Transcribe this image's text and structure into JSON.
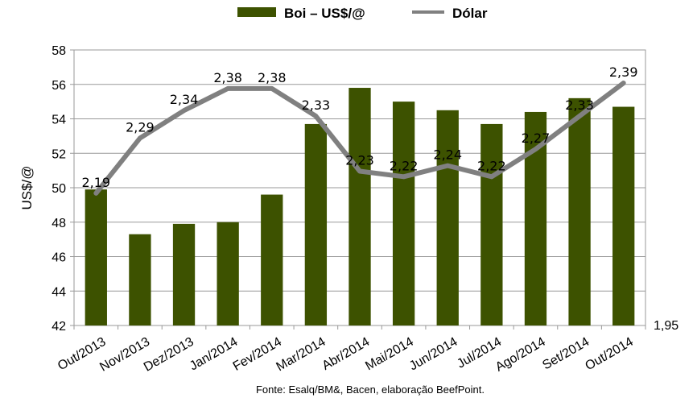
{
  "chart_data": {
    "type": "bar",
    "categories": [
      "Out/2013",
      "Nov/2013",
      "Dez/2013",
      "Jan/2014",
      "Fev/2014",
      "Mar/2014",
      "Abr/2014",
      "Mai/2014",
      "Jun/2014",
      "Jul/2014",
      "Ago/2014",
      "Set/2014",
      "Out/2014"
    ],
    "series": [
      {
        "name": "Boi – US$/@",
        "type": "bar",
        "color": "#3d5200",
        "values": [
          49.9,
          47.3,
          47.9,
          48.0,
          49.6,
          53.7,
          55.8,
          55.0,
          54.5,
          53.7,
          54.4,
          55.2,
          54.7
        ]
      },
      {
        "name": "Dólar",
        "type": "line",
        "color": "#808080",
        "values": [
          2.19,
          2.29,
          2.34,
          2.38,
          2.38,
          2.33,
          2.23,
          2.22,
          2.24,
          2.22,
          2.27,
          2.33,
          2.39
        ],
        "labels": [
          "2,19",
          "2,29",
          "2,34",
          "2,38",
          "2,38",
          "2,33",
          "2,23",
          "2,22",
          "2,24",
          "2,22",
          "2,27",
          "2,33",
          "2,39"
        ]
      }
    ],
    "ylabel": "US$/@",
    "ylim": [
      42,
      58
    ],
    "yticks": [
      "42",
      "44",
      "46",
      "48",
      "50",
      "52",
      "54",
      "56",
      "58"
    ],
    "y2_min": 1.95,
    "y2_min_label": "1,95",
    "y2_max": 2.45,
    "grid": true,
    "legend": "top-center",
    "source": "Fonte: Esalq/BM&, Bacen, elaboração BeefPoint."
  }
}
